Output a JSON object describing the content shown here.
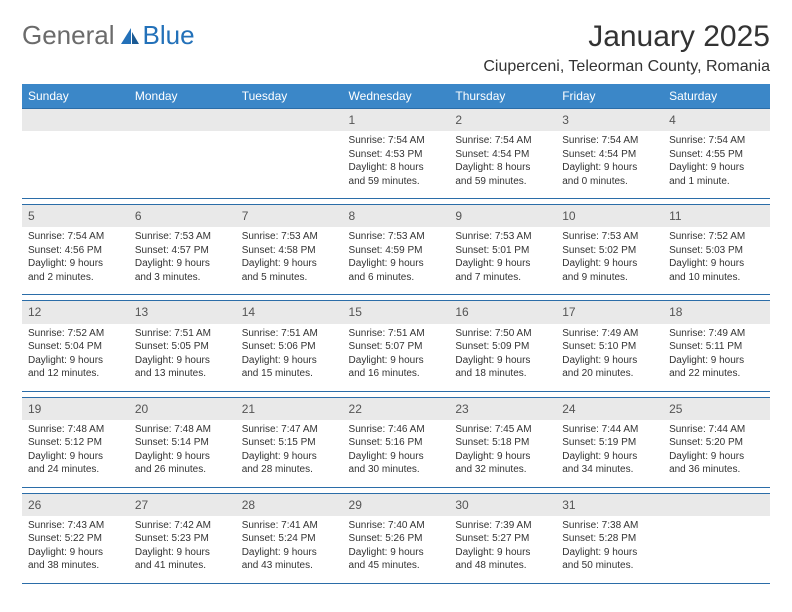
{
  "logo": {
    "general": "General",
    "blue": "Blue"
  },
  "title": "January 2025",
  "location": "Ciuperceni, Teleorman County, Romania",
  "colors": {
    "header_bg": "#3b87c8",
    "header_text": "#ffffff",
    "daynum_bg": "#e9e9e9",
    "border": "#2b6da8",
    "logo_gray": "#6b6b6b",
    "logo_blue": "#2371b9"
  },
  "weekdays": [
    "Sunday",
    "Monday",
    "Tuesday",
    "Wednesday",
    "Thursday",
    "Friday",
    "Saturday"
  ],
  "weeks": [
    {
      "nums": [
        "",
        "",
        "",
        "1",
        "2",
        "3",
        "4"
      ],
      "cells": [
        null,
        null,
        null,
        {
          "sunrise": "Sunrise: 7:54 AM",
          "sunset": "Sunset: 4:53 PM",
          "daylight1": "Daylight: 8 hours",
          "daylight2": "and 59 minutes."
        },
        {
          "sunrise": "Sunrise: 7:54 AM",
          "sunset": "Sunset: 4:54 PM",
          "daylight1": "Daylight: 8 hours",
          "daylight2": "and 59 minutes."
        },
        {
          "sunrise": "Sunrise: 7:54 AM",
          "sunset": "Sunset: 4:54 PM",
          "daylight1": "Daylight: 9 hours",
          "daylight2": "and 0 minutes."
        },
        {
          "sunrise": "Sunrise: 7:54 AM",
          "sunset": "Sunset: 4:55 PM",
          "daylight1": "Daylight: 9 hours",
          "daylight2": "and 1 minute."
        }
      ]
    },
    {
      "nums": [
        "5",
        "6",
        "7",
        "8",
        "9",
        "10",
        "11"
      ],
      "cells": [
        {
          "sunrise": "Sunrise: 7:54 AM",
          "sunset": "Sunset: 4:56 PM",
          "daylight1": "Daylight: 9 hours",
          "daylight2": "and 2 minutes."
        },
        {
          "sunrise": "Sunrise: 7:53 AM",
          "sunset": "Sunset: 4:57 PM",
          "daylight1": "Daylight: 9 hours",
          "daylight2": "and 3 minutes."
        },
        {
          "sunrise": "Sunrise: 7:53 AM",
          "sunset": "Sunset: 4:58 PM",
          "daylight1": "Daylight: 9 hours",
          "daylight2": "and 5 minutes."
        },
        {
          "sunrise": "Sunrise: 7:53 AM",
          "sunset": "Sunset: 4:59 PM",
          "daylight1": "Daylight: 9 hours",
          "daylight2": "and 6 minutes."
        },
        {
          "sunrise": "Sunrise: 7:53 AM",
          "sunset": "Sunset: 5:01 PM",
          "daylight1": "Daylight: 9 hours",
          "daylight2": "and 7 minutes."
        },
        {
          "sunrise": "Sunrise: 7:53 AM",
          "sunset": "Sunset: 5:02 PM",
          "daylight1": "Daylight: 9 hours",
          "daylight2": "and 9 minutes."
        },
        {
          "sunrise": "Sunrise: 7:52 AM",
          "sunset": "Sunset: 5:03 PM",
          "daylight1": "Daylight: 9 hours",
          "daylight2": "and 10 minutes."
        }
      ]
    },
    {
      "nums": [
        "12",
        "13",
        "14",
        "15",
        "16",
        "17",
        "18"
      ],
      "cells": [
        {
          "sunrise": "Sunrise: 7:52 AM",
          "sunset": "Sunset: 5:04 PM",
          "daylight1": "Daylight: 9 hours",
          "daylight2": "and 12 minutes."
        },
        {
          "sunrise": "Sunrise: 7:51 AM",
          "sunset": "Sunset: 5:05 PM",
          "daylight1": "Daylight: 9 hours",
          "daylight2": "and 13 minutes."
        },
        {
          "sunrise": "Sunrise: 7:51 AM",
          "sunset": "Sunset: 5:06 PM",
          "daylight1": "Daylight: 9 hours",
          "daylight2": "and 15 minutes."
        },
        {
          "sunrise": "Sunrise: 7:51 AM",
          "sunset": "Sunset: 5:07 PM",
          "daylight1": "Daylight: 9 hours",
          "daylight2": "and 16 minutes."
        },
        {
          "sunrise": "Sunrise: 7:50 AM",
          "sunset": "Sunset: 5:09 PM",
          "daylight1": "Daylight: 9 hours",
          "daylight2": "and 18 minutes."
        },
        {
          "sunrise": "Sunrise: 7:49 AM",
          "sunset": "Sunset: 5:10 PM",
          "daylight1": "Daylight: 9 hours",
          "daylight2": "and 20 minutes."
        },
        {
          "sunrise": "Sunrise: 7:49 AM",
          "sunset": "Sunset: 5:11 PM",
          "daylight1": "Daylight: 9 hours",
          "daylight2": "and 22 minutes."
        }
      ]
    },
    {
      "nums": [
        "19",
        "20",
        "21",
        "22",
        "23",
        "24",
        "25"
      ],
      "cells": [
        {
          "sunrise": "Sunrise: 7:48 AM",
          "sunset": "Sunset: 5:12 PM",
          "daylight1": "Daylight: 9 hours",
          "daylight2": "and 24 minutes."
        },
        {
          "sunrise": "Sunrise: 7:48 AM",
          "sunset": "Sunset: 5:14 PM",
          "daylight1": "Daylight: 9 hours",
          "daylight2": "and 26 minutes."
        },
        {
          "sunrise": "Sunrise: 7:47 AM",
          "sunset": "Sunset: 5:15 PM",
          "daylight1": "Daylight: 9 hours",
          "daylight2": "and 28 minutes."
        },
        {
          "sunrise": "Sunrise: 7:46 AM",
          "sunset": "Sunset: 5:16 PM",
          "daylight1": "Daylight: 9 hours",
          "daylight2": "and 30 minutes."
        },
        {
          "sunrise": "Sunrise: 7:45 AM",
          "sunset": "Sunset: 5:18 PM",
          "daylight1": "Daylight: 9 hours",
          "daylight2": "and 32 minutes."
        },
        {
          "sunrise": "Sunrise: 7:44 AM",
          "sunset": "Sunset: 5:19 PM",
          "daylight1": "Daylight: 9 hours",
          "daylight2": "and 34 minutes."
        },
        {
          "sunrise": "Sunrise: 7:44 AM",
          "sunset": "Sunset: 5:20 PM",
          "daylight1": "Daylight: 9 hours",
          "daylight2": "and 36 minutes."
        }
      ]
    },
    {
      "nums": [
        "26",
        "27",
        "28",
        "29",
        "30",
        "31",
        ""
      ],
      "cells": [
        {
          "sunrise": "Sunrise: 7:43 AM",
          "sunset": "Sunset: 5:22 PM",
          "daylight1": "Daylight: 9 hours",
          "daylight2": "and 38 minutes."
        },
        {
          "sunrise": "Sunrise: 7:42 AM",
          "sunset": "Sunset: 5:23 PM",
          "daylight1": "Daylight: 9 hours",
          "daylight2": "and 41 minutes."
        },
        {
          "sunrise": "Sunrise: 7:41 AM",
          "sunset": "Sunset: 5:24 PM",
          "daylight1": "Daylight: 9 hours",
          "daylight2": "and 43 minutes."
        },
        {
          "sunrise": "Sunrise: 7:40 AM",
          "sunset": "Sunset: 5:26 PM",
          "daylight1": "Daylight: 9 hours",
          "daylight2": "and 45 minutes."
        },
        {
          "sunrise": "Sunrise: 7:39 AM",
          "sunset": "Sunset: 5:27 PM",
          "daylight1": "Daylight: 9 hours",
          "daylight2": "and 48 minutes."
        },
        {
          "sunrise": "Sunrise: 7:38 AM",
          "sunset": "Sunset: 5:28 PM",
          "daylight1": "Daylight: 9 hours",
          "daylight2": "and 50 minutes."
        },
        null
      ]
    }
  ]
}
